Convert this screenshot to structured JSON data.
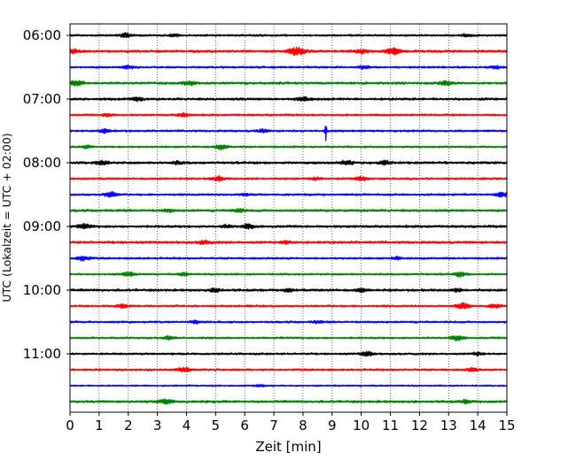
{
  "chart_data": {
    "type": "line",
    "chart_kind": "helicorder",
    "title": "",
    "xlabel": "Zeit  [min]",
    "ylabel": "UTC (Lokalzeit = UTC + 02:00)",
    "xlim": [
      0,
      15
    ],
    "x_ticks": [
      "0",
      "1",
      "2",
      "3",
      "4",
      "5",
      "6",
      "7",
      "8",
      "9",
      "10",
      "11",
      "12",
      "13",
      "14",
      "15"
    ],
    "y_ticks": [
      "06:00",
      "07:00",
      "08:00",
      "09:00",
      "10:00",
      "11:00"
    ],
    "grid": "vertical dotted",
    "colors": [
      "#000000",
      "#ff0000",
      "#0000ff",
      "#008000"
    ],
    "traces": [
      {
        "start": "06:00",
        "color": "#000000",
        "amplitude": 0.25,
        "events": [
          {
            "t": 1.9,
            "a": 0.55
          },
          {
            "t": 3.6,
            "a": 0.3
          },
          {
            "t": 13.6,
            "a": 0.35
          }
        ]
      },
      {
        "start": "06:15",
        "color": "#ff0000",
        "amplitude": 0.3,
        "events": [
          {
            "t": 7.8,
            "a": 1.0
          },
          {
            "t": 11.1,
            "a": 0.8
          },
          {
            "t": 10.0,
            "a": 0.5
          },
          {
            "t": 0.1,
            "a": 0.5
          }
        ]
      },
      {
        "start": "06:30",
        "color": "#0000ff",
        "amplitude": 0.25,
        "events": [
          {
            "t": 2.0,
            "a": 0.4
          },
          {
            "t": 10.1,
            "a": 0.4
          },
          {
            "t": 14.6,
            "a": 0.35
          }
        ]
      },
      {
        "start": "06:45",
        "color": "#008000",
        "amplitude": 0.3,
        "events": [
          {
            "t": 0.2,
            "a": 0.7
          },
          {
            "t": 4.1,
            "a": 0.5
          },
          {
            "t": 12.9,
            "a": 0.55
          }
        ]
      },
      {
        "start": "07:00",
        "color": "#000000",
        "amplitude": 0.3,
        "events": [
          {
            "t": 8.0,
            "a": 0.5
          },
          {
            "t": 2.3,
            "a": 0.4
          }
        ]
      },
      {
        "start": "07:15",
        "color": "#ff0000",
        "amplitude": 0.25,
        "events": [
          {
            "t": 1.3,
            "a": 0.4
          },
          {
            "t": 3.9,
            "a": 0.45
          }
        ]
      },
      {
        "start": "07:30",
        "color": "#0000ff",
        "amplitude": 0.25,
        "events": [
          {
            "t": 1.2,
            "a": 0.5
          },
          {
            "t": 6.6,
            "a": 0.4
          },
          {
            "t": 8.78,
            "a": 2.7
          }
        ]
      },
      {
        "start": "07:45",
        "color": "#008000",
        "amplitude": 0.25,
        "events": [
          {
            "t": 5.2,
            "a": 0.55
          },
          {
            "t": 0.6,
            "a": 0.35
          }
        ]
      },
      {
        "start": "08:00",
        "color": "#000000",
        "amplitude": 0.3,
        "events": [
          {
            "t": 1.1,
            "a": 0.55
          },
          {
            "t": 9.5,
            "a": 0.55
          },
          {
            "t": 10.8,
            "a": 0.45
          },
          {
            "t": 3.7,
            "a": 0.35
          }
        ]
      },
      {
        "start": "08:15",
        "color": "#ff0000",
        "amplitude": 0.25,
        "events": [
          {
            "t": 5.1,
            "a": 0.55
          },
          {
            "t": 10.0,
            "a": 0.5
          },
          {
            "t": 8.4,
            "a": 0.3
          }
        ]
      },
      {
        "start": "08:30",
        "color": "#0000ff",
        "amplitude": 0.25,
        "events": [
          {
            "t": 1.4,
            "a": 0.65
          },
          {
            "t": 14.8,
            "a": 0.6
          },
          {
            "t": 6.0,
            "a": 0.3
          }
        ]
      },
      {
        "start": "08:45",
        "color": "#008000",
        "amplitude": 0.3,
        "events": [
          {
            "t": 3.4,
            "a": 0.35
          },
          {
            "t": 5.8,
            "a": 0.45
          }
        ]
      },
      {
        "start": "09:00",
        "color": "#000000",
        "amplitude": 0.3,
        "events": [
          {
            "t": 0.5,
            "a": 0.55
          },
          {
            "t": 6.1,
            "a": 0.55
          },
          {
            "t": 5.4,
            "a": 0.35
          }
        ]
      },
      {
        "start": "09:15",
        "color": "#ff0000",
        "amplitude": 0.3,
        "events": [
          {
            "t": 4.6,
            "a": 0.45
          },
          {
            "t": 7.4,
            "a": 0.35
          }
        ]
      },
      {
        "start": "09:30",
        "color": "#0000ff",
        "amplitude": 0.25,
        "events": [
          {
            "t": 0.45,
            "a": 0.6
          },
          {
            "t": 11.2,
            "a": 0.35
          }
        ]
      },
      {
        "start": "09:45",
        "color": "#008000",
        "amplitude": 0.25,
        "events": [
          {
            "t": 2.0,
            "a": 0.55
          },
          {
            "t": 3.9,
            "a": 0.35
          },
          {
            "t": 13.4,
            "a": 0.55
          }
        ]
      },
      {
        "start": "10:00",
        "color": "#000000",
        "amplitude": 0.3,
        "events": [
          {
            "t": 5.0,
            "a": 0.45
          },
          {
            "t": 7.5,
            "a": 0.35
          },
          {
            "t": 10.0,
            "a": 0.4
          },
          {
            "t": 13.3,
            "a": 0.35
          }
        ]
      },
      {
        "start": "10:15",
        "color": "#ff0000",
        "amplitude": 0.25,
        "events": [
          {
            "t": 1.8,
            "a": 0.45
          },
          {
            "t": 13.5,
            "a": 0.75
          },
          {
            "t": 14.6,
            "a": 0.5
          }
        ]
      },
      {
        "start": "10:30",
        "color": "#0000ff",
        "amplitude": 0.25,
        "events": [
          {
            "t": 4.3,
            "a": 0.35
          },
          {
            "t": 8.5,
            "a": 0.3
          }
        ]
      },
      {
        "start": "10:45",
        "color": "#008000",
        "amplitude": 0.25,
        "events": [
          {
            "t": 3.4,
            "a": 0.45
          },
          {
            "t": 13.3,
            "a": 0.6
          }
        ]
      },
      {
        "start": "11:00",
        "color": "#000000",
        "amplitude": 0.25,
        "events": [
          {
            "t": 10.2,
            "a": 0.55
          },
          {
            "t": 14.0,
            "a": 0.4
          }
        ]
      },
      {
        "start": "11:15",
        "color": "#ff0000",
        "amplitude": 0.25,
        "events": [
          {
            "t": 3.9,
            "a": 0.6
          },
          {
            "t": 13.8,
            "a": 0.45
          }
        ]
      },
      {
        "start": "11:30",
        "color": "#0000ff",
        "amplitude": 0.2,
        "events": [
          {
            "t": 6.5,
            "a": 0.25
          }
        ]
      },
      {
        "start": "11:45",
        "color": "#008000",
        "amplitude": 0.3,
        "events": [
          {
            "t": 3.3,
            "a": 0.6
          },
          {
            "t": 13.6,
            "a": 0.4
          }
        ]
      }
    ]
  }
}
